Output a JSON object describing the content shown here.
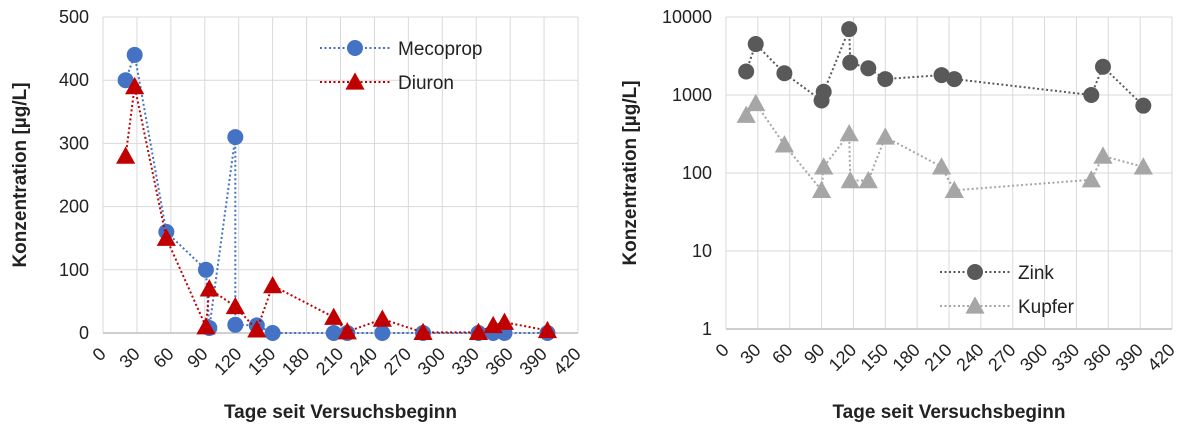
{
  "chart_data": [
    {
      "type": "line",
      "scale": "linear",
      "xlabel": "Tage seit Versuchsbeginn",
      "ylabel": "Konzentration [µg/L]",
      "xlim": [
        0,
        420
      ],
      "ylim": [
        0,
        500
      ],
      "xticks": [
        "0",
        "30",
        "60",
        "90",
        "120",
        "150",
        "180",
        "210",
        "240",
        "270",
        "300",
        "330",
        "360",
        "390",
        "420"
      ],
      "yticks": [
        "0",
        "100",
        "200",
        "300",
        "400",
        "500"
      ],
      "grid": true,
      "legend_position": "top-right",
      "series": [
        {
          "name": "Mecoprop",
          "color": "#4472C4",
          "marker": "circle",
          "x": [
            20,
            28,
            56,
            91,
            94,
            117,
            117,
            136,
            150,
            204,
            216,
            247,
            283,
            332,
            345,
            355,
            393
          ],
          "y": [
            400,
            440,
            160,
            100,
            8,
            310,
            13,
            12,
            0,
            0,
            0,
            0,
            0,
            0,
            0,
            0,
            0
          ]
        },
        {
          "name": "Diuron",
          "color": "#C00000",
          "marker": "triangle",
          "x": [
            20,
            28,
            56,
            91,
            94,
            117,
            136,
            150,
            204,
            216,
            247,
            283,
            332,
            345,
            355,
            393
          ],
          "y": [
            280,
            390,
            150,
            10,
            70,
            42,
            5,
            75,
            25,
            2,
            22,
            1,
            1,
            12,
            17,
            4
          ]
        }
      ]
    },
    {
      "type": "line",
      "scale": "log",
      "xlabel": "Tage seit Versuchsbeginn",
      "ylabel": "Konzentration [µg/L]",
      "xlim": [
        0,
        420
      ],
      "ylim": [
        1,
        10000
      ],
      "xticks": [
        "0",
        "30",
        "60",
        "90",
        "120",
        "150",
        "180",
        "210",
        "240",
        "270",
        "300",
        "330",
        "360",
        "390",
        "420"
      ],
      "yticks": [
        "1",
        "10",
        "100",
        "1000",
        "10000"
      ],
      "grid": true,
      "legend_position": "bottom-right",
      "series": [
        {
          "name": "Zink",
          "color": "#595959",
          "marker": "circle",
          "x": [
            19,
            28,
            55,
            90,
            92,
            116,
            117,
            134,
            150,
            203,
            215,
            344,
            355,
            393
          ],
          "y": [
            2000,
            4500,
            1900,
            850,
            1100,
            7000,
            2600,
            2200,
            1600,
            1800,
            1600,
            1000,
            2300,
            730
          ]
        },
        {
          "name": "Kupfer",
          "color": "#A6A6A6",
          "marker": "triangle",
          "x": [
            19,
            28,
            55,
            90,
            92,
            116,
            117,
            134,
            150,
            203,
            215,
            344,
            355,
            393
          ],
          "y": [
            550,
            780,
            230,
            60,
            120,
            320,
            80,
            80,
            290,
            120,
            60,
            82,
            165,
            120
          ]
        }
      ]
    }
  ]
}
